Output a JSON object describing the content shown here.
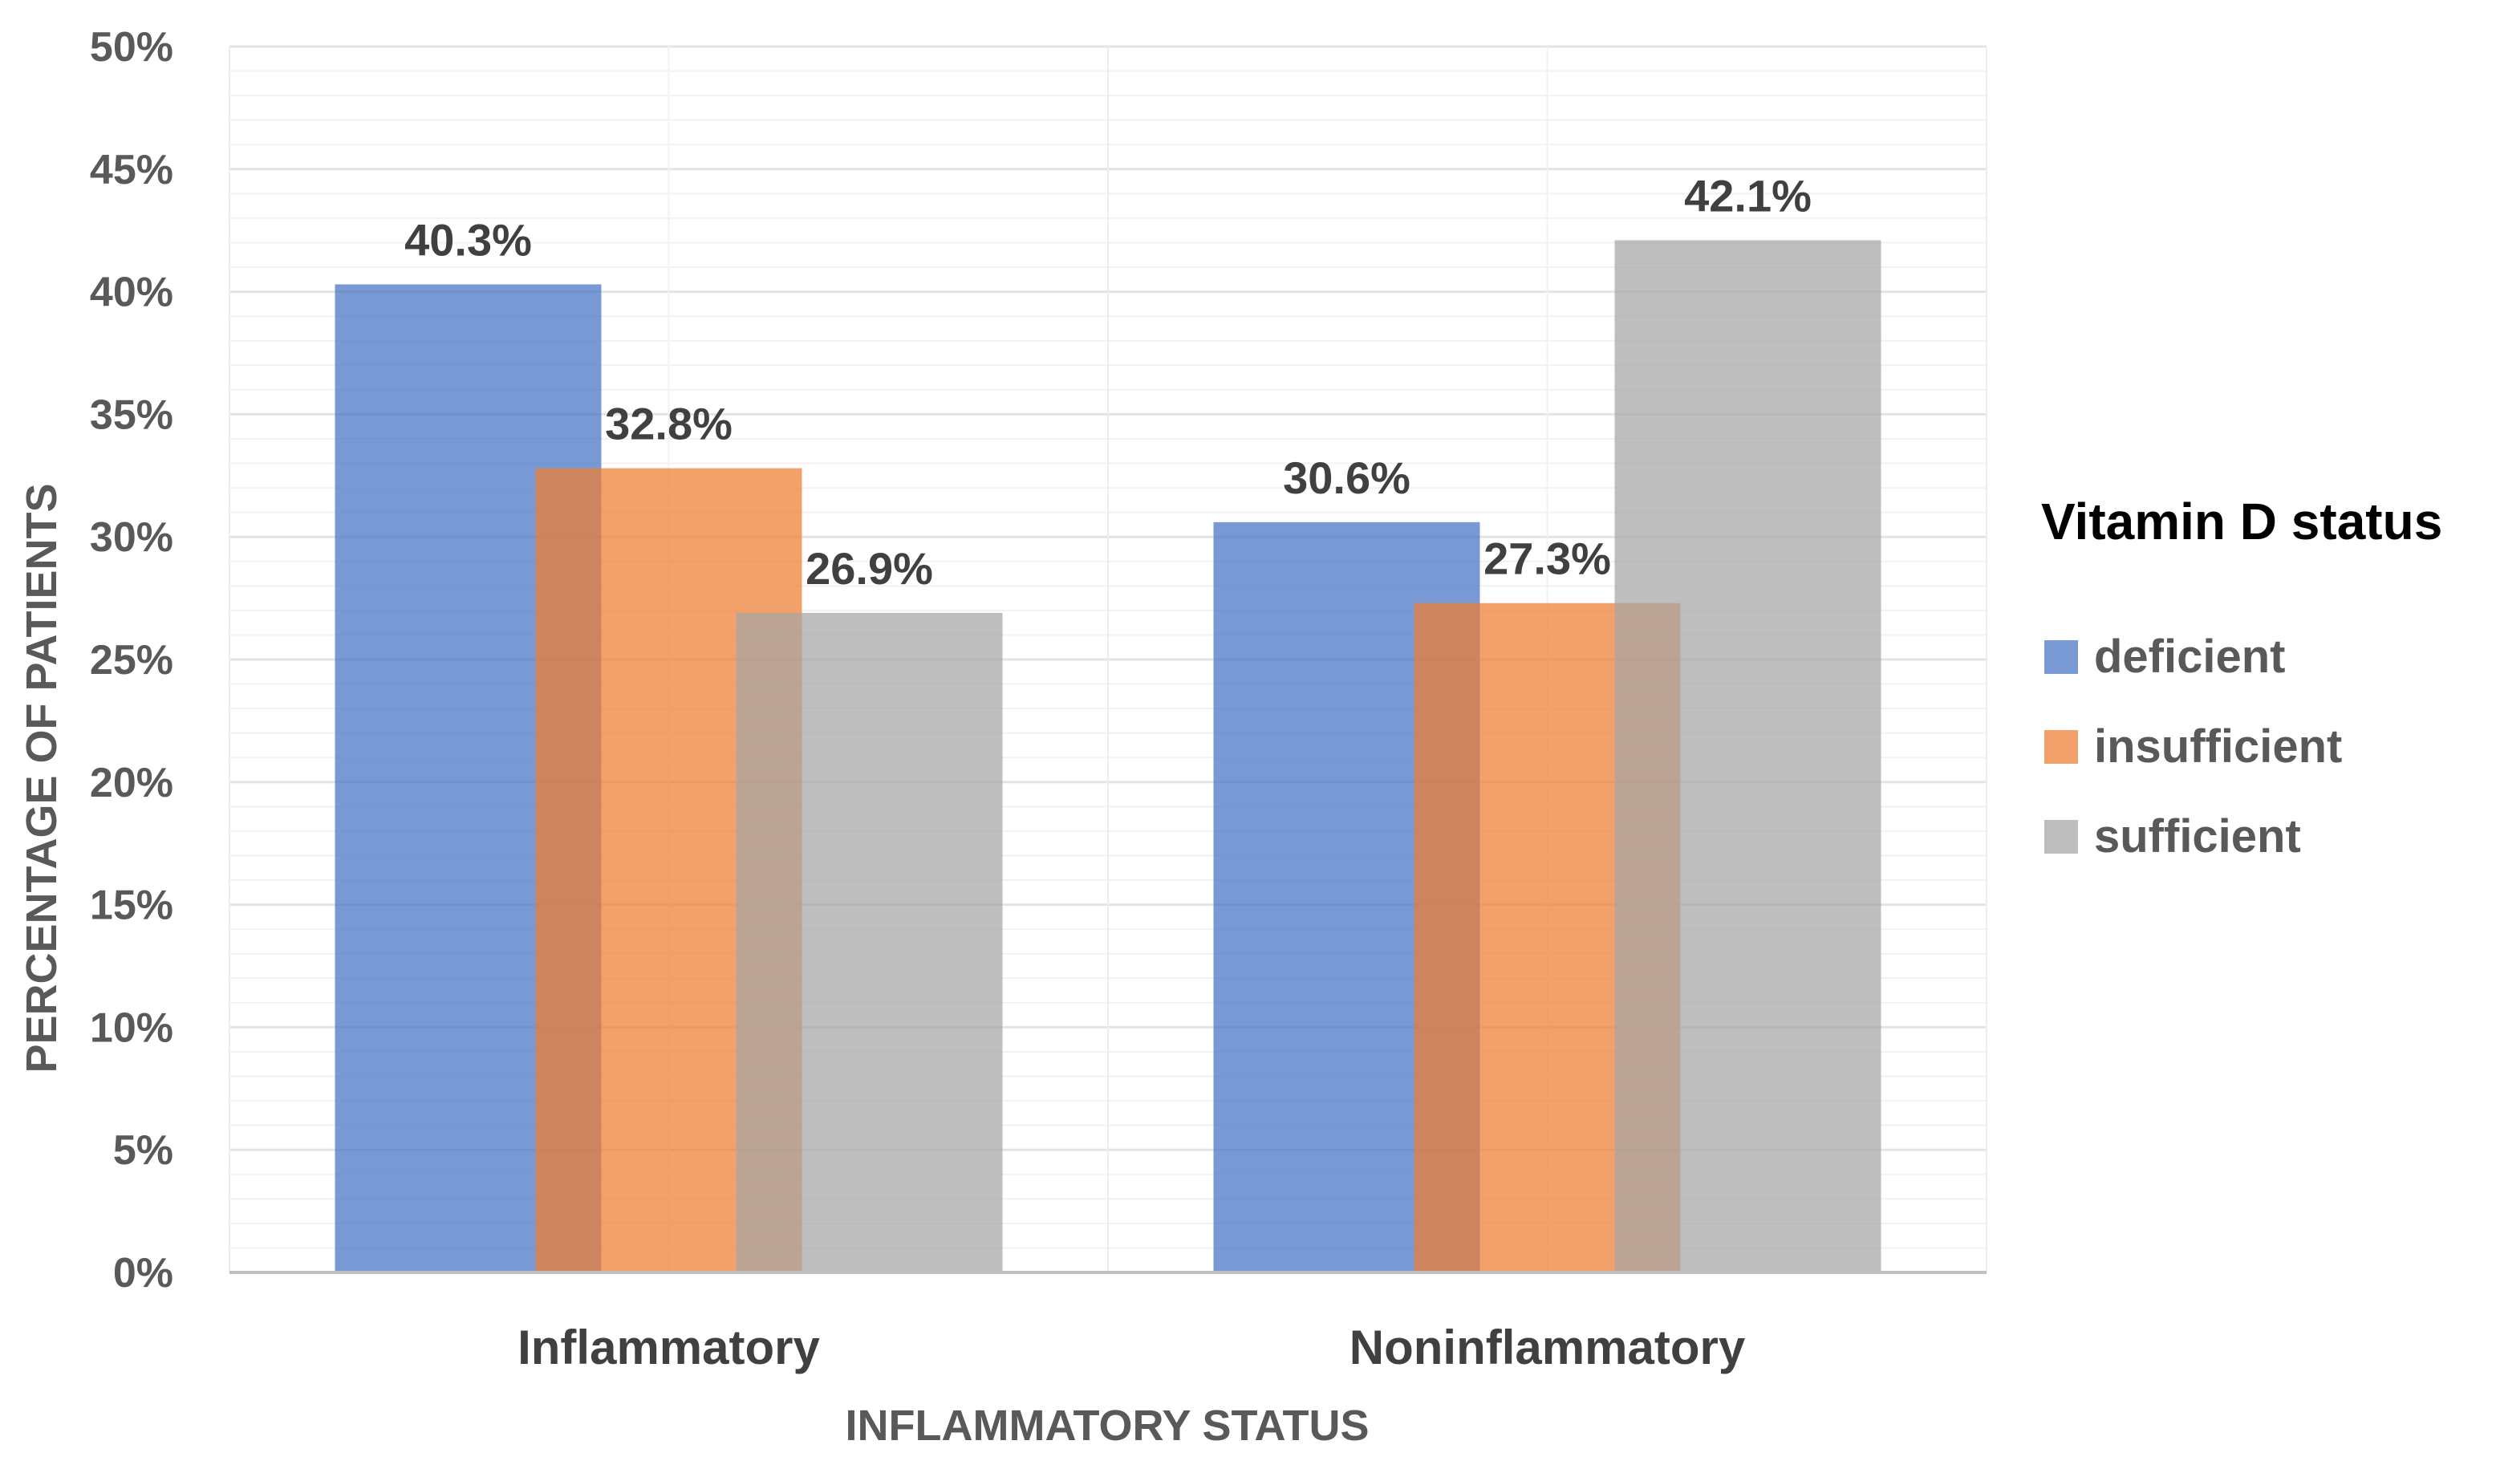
{
  "chart_data": {
    "type": "bar",
    "title": "",
    "xlabel": "INFLAMMATORY STATUS",
    "ylabel": "PERCENTAGE OF PATIENTS",
    "categories": [
      "Inflammatory",
      "Noninflammatory"
    ],
    "series": [
      {
        "name": "deficient",
        "values": [
          40.3,
          30.6
        ],
        "labels": [
          "40.3%",
          "30.6%"
        ],
        "color": "#4472C4"
      },
      {
        "name": "insufficient",
        "values": [
          32.8,
          27.3
        ],
        "labels": [
          "32.8%",
          "27.3%"
        ],
        "color": "#ED7D31"
      },
      {
        "name": "sufficient",
        "values": [
          26.9,
          42.1
        ],
        "labels": [
          "26.9%",
          "42.1%"
        ],
        "color": "#A5A5A5"
      }
    ],
    "ylim": [
      0,
      50
    ],
    "yticks": [
      0,
      5,
      10,
      15,
      20,
      25,
      30,
      35,
      40,
      45,
      50
    ],
    "ytick_labels": [
      "0%",
      "5%",
      "10%",
      "15%",
      "20%",
      "25%",
      "30%",
      "35%",
      "40%",
      "45%",
      "50%"
    ],
    "legend": {
      "title": "Vitamin D status",
      "position": "right"
    },
    "grid": true
  }
}
